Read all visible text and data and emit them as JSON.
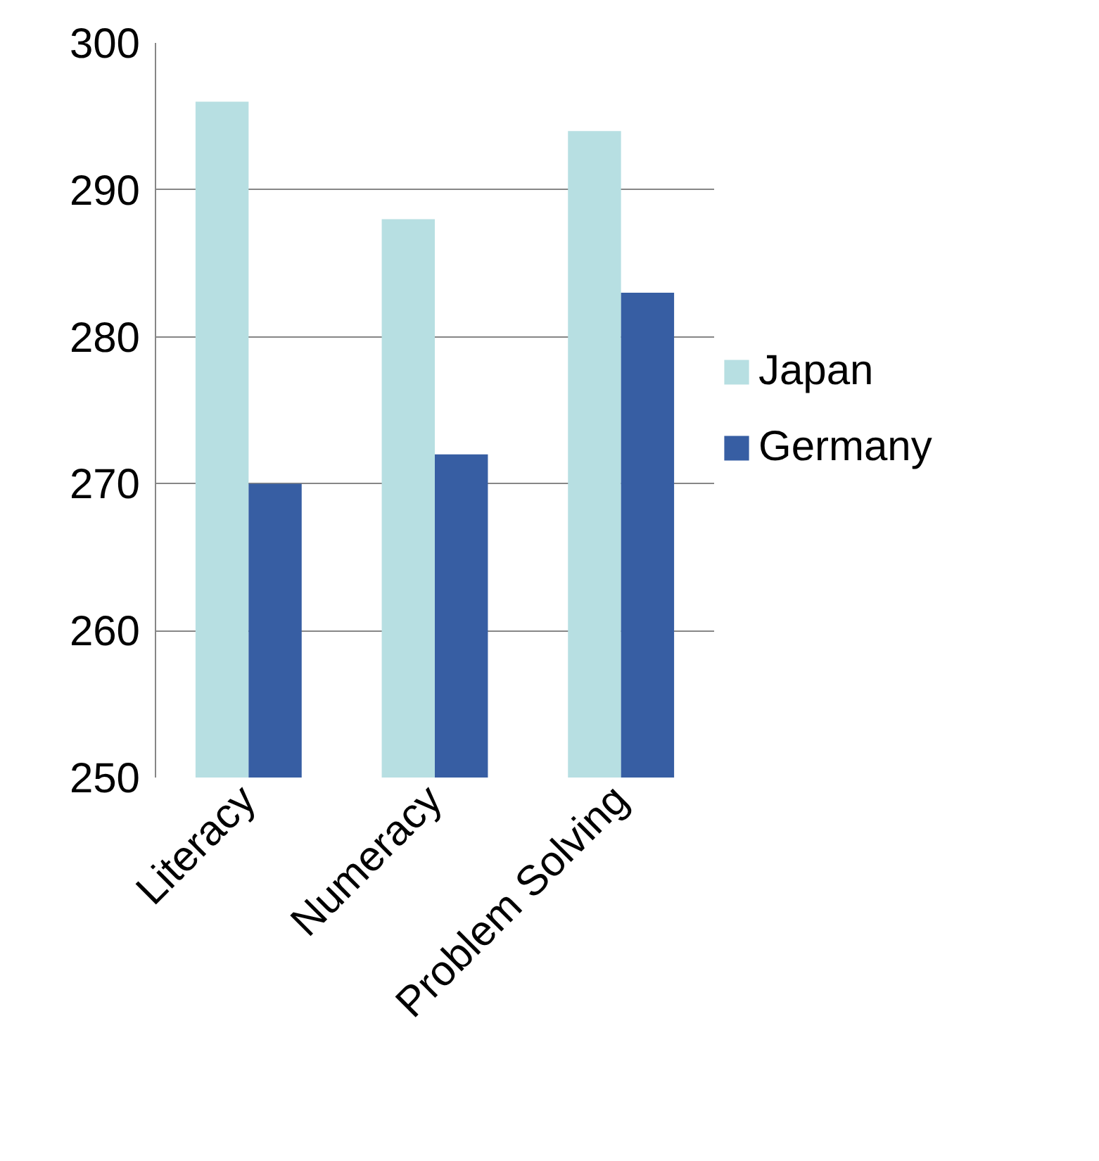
{
  "chart_data": {
    "type": "bar",
    "categories": [
      "Literacy",
      "Numeracy",
      "Problem Solving"
    ],
    "series": [
      {
        "name": "Japan",
        "color": "#b7dfe2",
        "values": [
          296,
          288,
          294
        ]
      },
      {
        "name": "Germany",
        "color": "#375ea3",
        "values": [
          270,
          272,
          283
        ]
      }
    ],
    "ylim": [
      250,
      300
    ],
    "yticks": [
      250,
      260,
      270,
      280,
      290,
      300
    ],
    "grid": "y",
    "legend": "right"
  }
}
